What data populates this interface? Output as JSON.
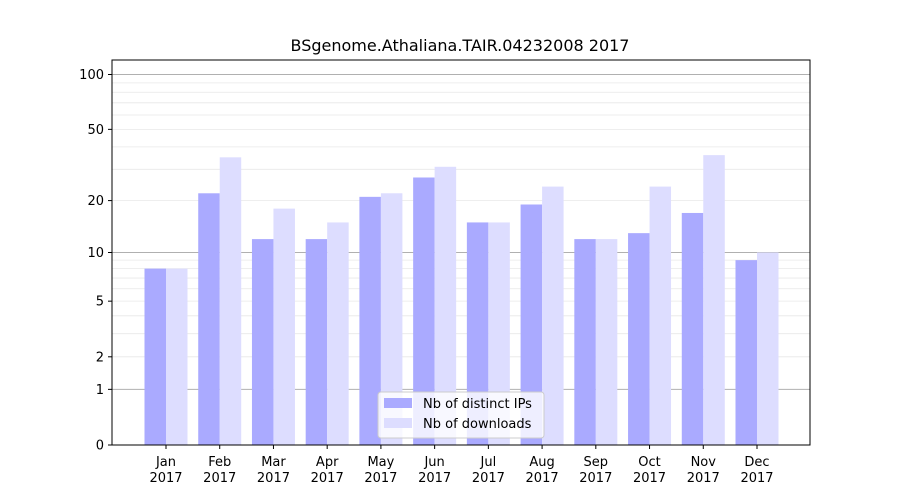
{
  "chart_data": {
    "type": "bar",
    "title": "BSgenome.Athaliana.TAIR.04232008 2017",
    "xlabel": "",
    "ylabel": "",
    "y_scale": "log(1+y)",
    "ylim": [
      0,
      120
    ],
    "y_ticks": [
      0,
      1,
      2,
      5,
      10,
      20,
      50,
      100
    ],
    "grid": "horizontal",
    "legend_position": "bottom-center",
    "categories": [
      [
        "Jan",
        "2017"
      ],
      [
        "Feb",
        "2017"
      ],
      [
        "Mar",
        "2017"
      ],
      [
        "Apr",
        "2017"
      ],
      [
        "May",
        "2017"
      ],
      [
        "Jun",
        "2017"
      ],
      [
        "Jul",
        "2017"
      ],
      [
        "Aug",
        "2017"
      ],
      [
        "Sep",
        "2017"
      ],
      [
        "Oct",
        "2017"
      ],
      [
        "Nov",
        "2017"
      ],
      [
        "Dec",
        "2017"
      ]
    ],
    "series": [
      {
        "name": "Nb of distinct IPs",
        "color": "#aaaaff",
        "values": [
          8,
          22,
          12,
          12,
          21,
          27,
          15,
          19,
          12,
          13,
          17,
          9
        ]
      },
      {
        "name": "Nb of downloads",
        "color": "#ddddff",
        "values": [
          8,
          35,
          18,
          15,
          22,
          31,
          15,
          24,
          12,
          24,
          36,
          10
        ]
      }
    ]
  }
}
